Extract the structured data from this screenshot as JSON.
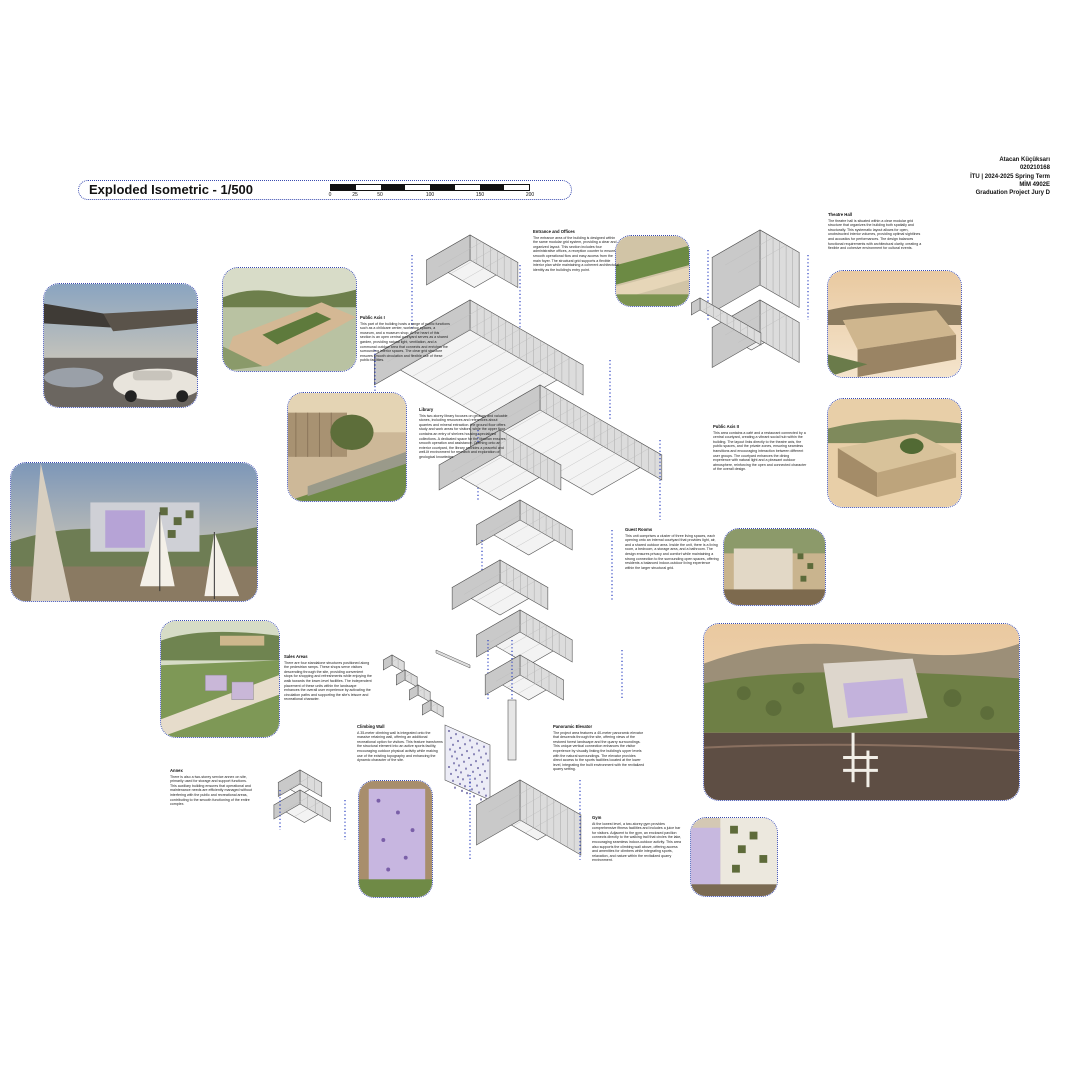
{
  "sheet": {
    "title": "Exploded Isometric - 1/500",
    "scale_ticks": [
      "0",
      "25",
      "50",
      "100",
      "150",
      "200"
    ],
    "author_block": [
      "Atacan Küçüksarı",
      "020210168",
      "İTU | 2024-2025 Spring Term",
      "MİM 4902E",
      "Graduation Project Jury D"
    ]
  },
  "annotations": [
    {
      "key": "entrance",
      "title": "Entrance and Offices",
      "body": "The entrance area of the building is designed within the same modular grid system, providing a clear and organized layout. This section includes four administrative offices, a reception counter to ensure smooth operational flow and easy access from the main foyer. The structural grid supports a flexible interior plan while maintaining a coherent architectural identity as the building's entry point."
    },
    {
      "key": "theatre",
      "title": "Theatre Hall",
      "body": "The theatre hall is situated within a clear modular grid structure that organizes the building both spatially and structurally. This systematic layout allows for open, unobstructed interior volumes, providing optimal sightlines and acoustics for performances. The design balances functional requirements with architectural clarity, creating a flexible and cohesive environment for cultural events."
    },
    {
      "key": "public1",
      "title": "Public Axis I",
      "body": "This part of the building hosts a range of public functions such as a childcare center, workshop spaces, a museum, and a museum shop. At the heart of this section is an open central courtyard serves as a shared garden, providing natural light, ventilation, and a communal outdoor area that connects and enriches the surrounding interior spaces. The clear grid structure ensures smooth circulation and flexible use of these public facilities."
    },
    {
      "key": "library",
      "title": "Library",
      "body": "This two-storey library focuses on geology and valuable stones, including resources and references about quarries and mineral extraction. the ground floor offers study and work areas for visitors, while the upper floor contains an entry of shelves housing specialized collections. A dedicated space for the librarian ensures smooth operation and assistance. Opening onto an exterior courtyard, the library provides a peaceful and well-lit environment for research and exploration of geological knowledge."
    },
    {
      "key": "public2",
      "title": "Public Axis II",
      "body": "This area contains a café and a restaurant connected by a central courtyard, creating a vibrant social hub within the building. The layout links directly to the theatre axis, the public spaces, and the private zones, ensuring seamless transitions and encouraging interaction between different user groups. The courtyard enhances the dining experience with natural light and a pleasant outdoor atmosphere, reinforcing the open and connected character of the overall design."
    },
    {
      "key": "guest",
      "title": "Guest Rooms",
      "body": "This unit comprises a cluster of three living spaces, each opening onto an internal courtyard that provides light, air, and a shared outdoor area. Inside the unit, there is a living room, a bedroom, a storage area, and a bathroom. The design ensures privacy and comfort while maintaining a strong connection to the surrounding open spaces, offering residents a balanced indoor-outdoor living experience within the larger structural grid."
    },
    {
      "key": "sales",
      "title": "Sales Areas",
      "body": "There are four standalone structures positioned along the pedestrian ramps. These shops serve visitors descending through the site, providing convenient stops for shopping and refreshments while enjoying the walk towards the lower-level facilities. The independent placement of these units within the landscape enhances the overall user experience by activating the circulation paths and supporting the site's leisure and recreational character."
    },
    {
      "key": "climbing",
      "title": "Climbing Wall",
      "body": "A 35-meter climbing wall is integrated onto the massive retaining wall, offering an additional recreational option for visitors. This feature transforms the structural element into an active sports facility, encouraging outdoor physical activity while making use of the existing topography and enhancing the dynamic character of the site."
    },
    {
      "key": "elevator",
      "title": "Panoramic Elevator",
      "body": "The project area features a 40-meter panoramic elevator that descends through the site, offering views of the restored forest landscape and the quarry surroundings. This unique vertical connection enhances the visitor experience by visually linking the building's upper levels with the natural surroundings. The elevator provides direct access to the sports facilities located at the lower level, integrating the built environment with the revitalized quarry setting."
    },
    {
      "key": "annex",
      "title": "Annex",
      "body": "There is also a two-storey service annex on site, primarily used for storage and support functions. This auxiliary building ensures that operational and maintenance needs are efficiently managed without interfering with the public and recreational areas, contributing to the smooth functioning of the entire complex."
    },
    {
      "key": "gym",
      "title": "Gym",
      "body": "At the lowest level, a two-storey gym provides comprehensive fitness facilities and includes a juice bar for visitors. Adjacent to the gym, an enclosed pavilion connects directly to the walking trail that circles the lake, encouraging seamless indoor-outdoor activity. This area also supports the climbing wall above, offering access and amenities for climbers while integrating sports, relaxation, and nature within the revitalized quarry environment."
    }
  ],
  "photos": [
    {
      "key": "parking",
      "subject": "parking canopy with cars"
    },
    {
      "key": "roof-garden",
      "subject": "aerial of landscaped roof and courtyard"
    },
    {
      "key": "library-courtyard",
      "subject": "library courtyard with trees"
    },
    {
      "key": "lake-sailboats",
      "subject": "building seen from lake with sailboats"
    },
    {
      "key": "sales-ramp",
      "subject": "sales pavilions along ramp"
    },
    {
      "key": "climbing-wall",
      "subject": "purple climbing wall"
    },
    {
      "key": "entrance-aerial",
      "subject": "entrance block aerial"
    },
    {
      "key": "theatre-aerial",
      "subject": "theatre hall at sunset"
    },
    {
      "key": "public-courtyard",
      "subject": "public axis courtyard aerial"
    },
    {
      "key": "guest-rooms",
      "subject": "guest room terraces"
    },
    {
      "key": "site-overview",
      "subject": "site overview with lake and pier"
    },
    {
      "key": "gym-facade",
      "subject": "gym facade with green wall"
    }
  ],
  "colors": {
    "frame": "#3a4bb0",
    "dots": "#2a3fc0",
    "line": "#555555"
  }
}
